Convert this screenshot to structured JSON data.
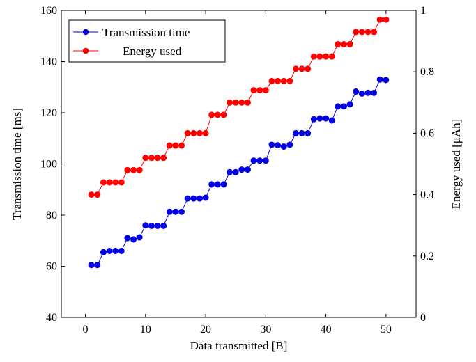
{
  "colors": {
    "series_1": "#0000e0",
    "series_2": "#ff0000",
    "axis": "#000000",
    "background": "#ffffff"
  },
  "chart_data": {
    "type": "line",
    "xlabel": "Data transmitted [B]",
    "ylabel": "Transmission time [ms]",
    "y2label": "Energy used [μAh]",
    "xlim": [
      -4,
      55
    ],
    "ylim": [
      40,
      160
    ],
    "y2lim": [
      0,
      1
    ],
    "xticks": [
      "0",
      "10",
      "20",
      "30",
      "40",
      "50"
    ],
    "yticks": [
      "40",
      "60",
      "80",
      "100",
      "120",
      "140",
      "160"
    ],
    "y2ticks": [
      "0",
      "0.2",
      "0.4",
      "0.6",
      "0.8",
      "1"
    ],
    "grid": false,
    "legend": "top-left",
    "x": [
      1,
      2,
      3,
      4,
      5,
      6,
      7,
      8,
      9,
      10,
      11,
      12,
      13,
      14,
      15,
      16,
      17,
      18,
      19,
      20,
      21,
      22,
      23,
      24,
      25,
      26,
      27,
      28,
      29,
      30,
      31,
      32,
      33,
      34,
      35,
      36,
      37,
      38,
      39,
      40,
      41,
      42,
      43,
      44,
      45,
      46,
      47,
      48,
      49,
      50
    ],
    "series": [
      {
        "name": "Transmission time",
        "axis": "left",
        "color": "#0000e0",
        "values": [
          60.5,
          60.5,
          65.5,
          66,
          66,
          66,
          71,
          70.5,
          71.3,
          76,
          75.8,
          75.8,
          75.8,
          81.3,
          81.3,
          81.3,
          86.5,
          86.5,
          86.5,
          86.8,
          92,
          92,
          92,
          96.8,
          96.8,
          97.8,
          97.8,
          101.3,
          101.3,
          101.3,
          107.5,
          107.3,
          106.8,
          107.5,
          112,
          112,
          112,
          117.5,
          117.8,
          117.8,
          117,
          122.5,
          122.5,
          123.3,
          128.3,
          127.5,
          127.8,
          127.8,
          133,
          132.8
        ]
      },
      {
        "name": "Energy used",
        "axis": "right",
        "color": "#ff0000",
        "values": [
          0.4,
          0.4,
          0.44,
          0.44,
          0.44,
          0.44,
          0.48,
          0.48,
          0.48,
          0.52,
          0.52,
          0.52,
          0.52,
          0.56,
          0.56,
          0.56,
          0.6,
          0.6,
          0.6,
          0.6,
          0.66,
          0.66,
          0.66,
          0.7,
          0.7,
          0.7,
          0.7,
          0.74,
          0.74,
          0.74,
          0.77,
          0.77,
          0.77,
          0.77,
          0.81,
          0.81,
          0.81,
          0.85,
          0.85,
          0.85,
          0.85,
          0.89,
          0.89,
          0.89,
          0.93,
          0.93,
          0.93,
          0.93,
          0.97,
          0.97
        ]
      }
    ]
  }
}
